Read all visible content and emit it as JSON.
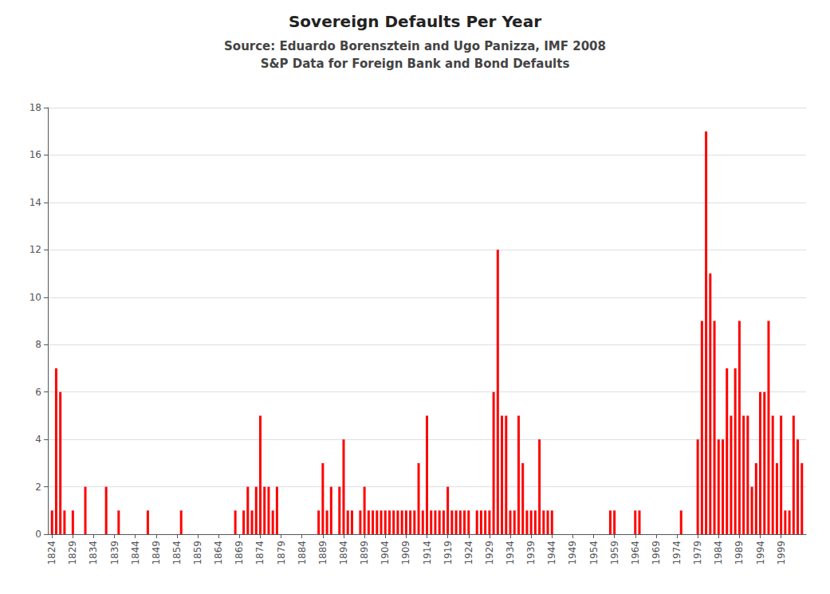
{
  "chart_data": {
    "type": "bar",
    "title": "Sovereign Defaults Per Year",
    "subtitle": [
      "Source: Eduardo Borensztein and Ugo Panizza, IMF 2008",
      "S&P Data for Foreign Bank and Bond Defaults"
    ],
    "x": [
      1824,
      1825,
      1826,
      1827,
      1828,
      1829,
      1830,
      1831,
      1832,
      1833,
      1834,
      1835,
      1836,
      1837,
      1838,
      1839,
      1840,
      1841,
      1842,
      1843,
      1844,
      1845,
      1846,
      1847,
      1848,
      1849,
      1850,
      1851,
      1852,
      1853,
      1854,
      1855,
      1856,
      1857,
      1858,
      1859,
      1860,
      1861,
      1862,
      1863,
      1864,
      1865,
      1866,
      1867,
      1868,
      1869,
      1870,
      1871,
      1872,
      1873,
      1874,
      1875,
      1876,
      1877,
      1878,
      1879,
      1880,
      1881,
      1882,
      1883,
      1884,
      1885,
      1886,
      1887,
      1888,
      1889,
      1890,
      1891,
      1892,
      1893,
      1894,
      1895,
      1896,
      1897,
      1898,
      1899,
      1900,
      1901,
      1902,
      1903,
      1904,
      1905,
      1906,
      1907,
      1908,
      1909,
      1910,
      1911,
      1912,
      1913,
      1914,
      1915,
      1916,
      1917,
      1918,
      1919,
      1920,
      1921,
      1922,
      1923,
      1924,
      1925,
      1926,
      1927,
      1928,
      1929,
      1930,
      1931,
      1932,
      1933,
      1934,
      1935,
      1936,
      1937,
      1938,
      1939,
      1940,
      1941,
      1942,
      1943,
      1944,
      1945,
      1946,
      1947,
      1948,
      1949,
      1950,
      1951,
      1952,
      1953,
      1954,
      1955,
      1956,
      1957,
      1958,
      1959,
      1960,
      1961,
      1962,
      1963,
      1964,
      1965,
      1966,
      1967,
      1968,
      1969,
      1970,
      1971,
      1972,
      1973,
      1974,
      1975,
      1976,
      1977,
      1978,
      1979,
      1980,
      1981,
      1982,
      1983,
      1984,
      1985,
      1986,
      1987,
      1988,
      1989,
      1990,
      1991,
      1992,
      1993,
      1994,
      1995,
      1996,
      1997,
      1998,
      1999,
      2000,
      2001,
      2002,
      2003,
      2004
    ],
    "values": [
      1,
      7,
      6,
      1,
      0,
      1,
      0,
      0,
      2,
      0,
      0,
      0,
      0,
      2,
      0,
      0,
      1,
      0,
      0,
      0,
      0,
      0,
      0,
      1,
      0,
      0,
      0,
      0,
      0,
      0,
      0,
      1,
      0,
      0,
      0,
      0,
      0,
      0,
      0,
      0,
      0,
      0,
      0,
      0,
      1,
      0,
      1,
      2,
      1,
      2,
      5,
      2,
      2,
      1,
      2,
      0,
      0,
      0,
      0,
      0,
      0,
      0,
      0,
      0,
      1,
      3,
      1,
      2,
      0,
      2,
      4,
      1,
      1,
      0,
      1,
      2,
      1,
      1,
      1,
      1,
      1,
      1,
      1,
      1,
      1,
      1,
      1,
      1,
      3,
      1,
      5,
      1,
      1,
      1,
      1,
      2,
      1,
      1,
      1,
      1,
      1,
      0,
      1,
      1,
      1,
      1,
      6,
      12,
      5,
      5,
      1,
      1,
      5,
      3,
      1,
      1,
      1,
      4,
      1,
      1,
      1,
      0,
      0,
      0,
      0,
      0,
      0,
      0,
      0,
      0,
      0,
      0,
      0,
      0,
      1,
      1,
      0,
      0,
      0,
      0,
      1,
      1,
      0,
      0,
      0,
      0,
      0,
      0,
      0,
      0,
      0,
      1,
      0,
      0,
      0,
      4,
      9,
      17,
      11,
      9,
      4,
      4,
      7,
      5,
      7,
      9,
      5,
      5,
      2,
      3,
      6,
      6,
      9,
      5,
      3,
      5,
      1,
      1,
      5,
      4,
      3
    ],
    "color": "#ff0000",
    "xlim": [
      1823,
      2005
    ],
    "xticks": [
      1824,
      1829,
      1834,
      1839,
      1844,
      1849,
      1854,
      1859,
      1864,
      1869,
      1874,
      1879,
      1884,
      1889,
      1894,
      1899,
      1904,
      1909,
      1914,
      1919,
      1924,
      1929,
      1934,
      1939,
      1944,
      1949,
      1954,
      1959,
      1964,
      1969,
      1974,
      1979,
      1984,
      1989,
      1994,
      1999
    ],
    "ylim": [
      0,
      18
    ],
    "yticks": [
      0,
      2,
      4,
      6,
      8,
      10,
      12,
      14,
      16,
      18
    ],
    "grid": true
  }
}
